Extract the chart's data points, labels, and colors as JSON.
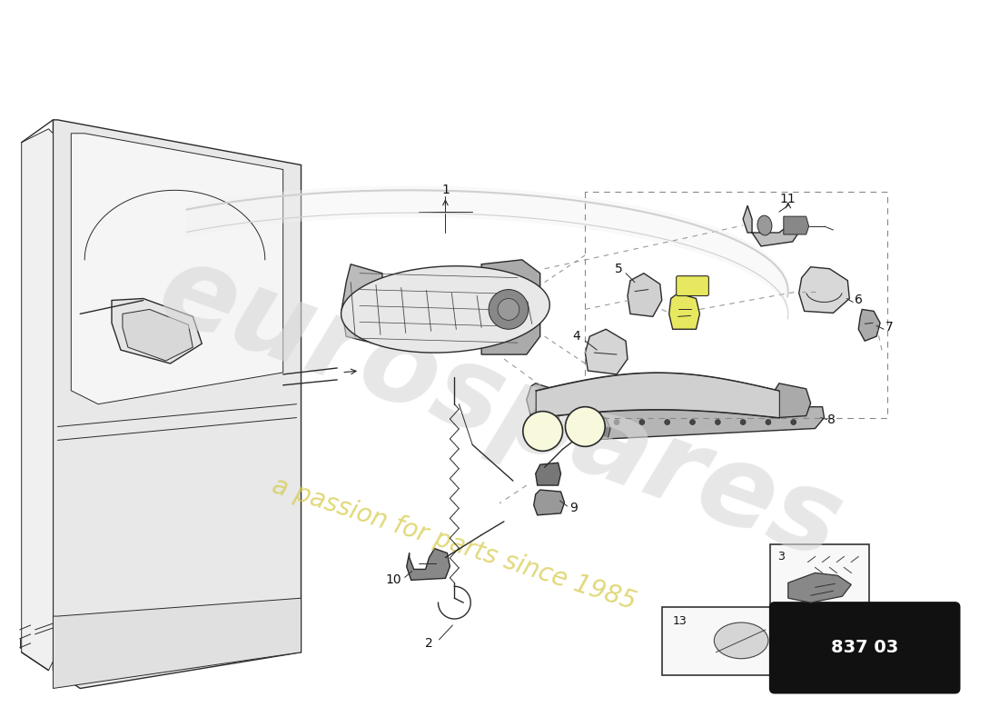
{
  "background_color": "#ffffff",
  "line_color": "#2a2a2a",
  "light_gray": "#cccccc",
  "mid_gray": "#888888",
  "dark_gray": "#444444",
  "very_light_gray": "#e8e8e8",
  "yellow_highlight": "#e8e860",
  "watermark_text": "eurospares",
  "watermark_subtext": "a passion for parts since 1985",
  "part_number": "837 03",
  "watermark_color": "#d8d8d8",
  "watermark_alpha": 0.6,
  "subtext_color": "#d4c840",
  "subtext_alpha": 0.7,
  "label_fs": 10,
  "label_color": "#111111"
}
